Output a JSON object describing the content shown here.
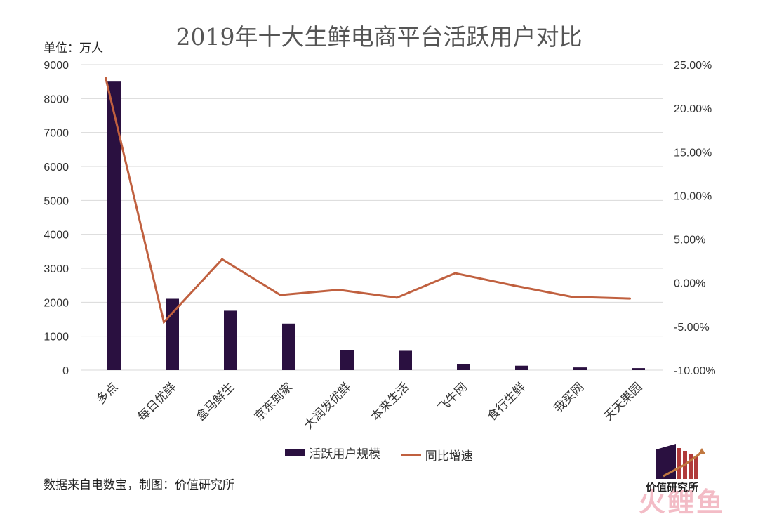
{
  "title": "2019年十大生鲜电商平台活跃用户对比",
  "unit_label": "单位：万人",
  "source_note": "数据来自电数宝，制图：价值研究所",
  "legend": {
    "bar_label": "活跃用户规模",
    "line_label": "同比增速"
  },
  "watermark": {
    "org_text": "价值研究所",
    "brand_text": "火鲤鱼"
  },
  "colors": {
    "bar": "#2a1040",
    "line": "#c0603f",
    "grid": "#d9d9d9"
  },
  "chart_data": {
    "type": "bar+line",
    "categories": [
      "多点",
      "每日优鲜",
      "盒马鲜生",
      "京东到家",
      "大润发优鲜",
      "本来生活",
      "飞牛网",
      "食行生鲜",
      "我买网",
      "天天果园"
    ],
    "series": [
      {
        "name": "活跃用户规模",
        "type": "bar",
        "axis": "left",
        "values": [
          8500,
          2100,
          1750,
          1370,
          580,
          570,
          170,
          130,
          80,
          60
        ]
      },
      {
        "name": "同比增速",
        "type": "line",
        "axis": "right",
        "values": [
          23.5,
          -4.5,
          2.7,
          -1.4,
          -0.8,
          -1.7,
          1.1,
          -0.3,
          -1.6,
          -1.8
        ]
      }
    ],
    "y_left": {
      "min": 0,
      "max": 9000,
      "ticks": [
        "0",
        "1000",
        "2000",
        "3000",
        "4000",
        "5000",
        "6000",
        "7000",
        "8000",
        "9000"
      ]
    },
    "y_right": {
      "min": -10,
      "max": 25,
      "ticks": [
        "-10.00%",
        "-5.00%",
        "0.00%",
        "5.00%",
        "10.00%",
        "15.00%",
        "20.00%",
        "25.00%"
      ]
    },
    "grid": true,
    "legend_position": "bottom"
  }
}
